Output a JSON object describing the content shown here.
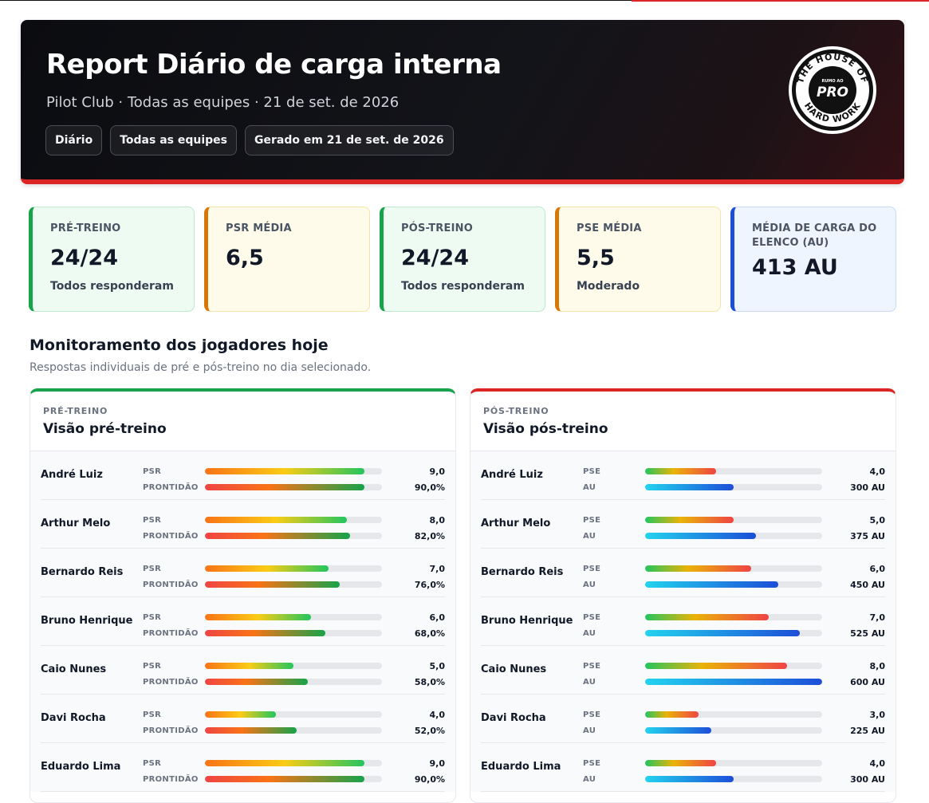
{
  "header": {
    "title": "Report Diário de carga interna",
    "subtitle": "Pilot Club · Todas as equipes · 21 de set. de 2026",
    "pills": [
      "Diário",
      "Todas as equipes",
      "Gerado em 21 de set. de 2026"
    ],
    "logo": {
      "top_text": "THE HOUSE OF",
      "small_text": "RUMO AO",
      "main_text": "PRO",
      "bottom_text": "HARD WORK"
    }
  },
  "kpis": [
    {
      "label": "PRÉ-TREINO",
      "value": "24/24",
      "note": "Todos responderam",
      "accent": "#16a34a"
    },
    {
      "label": "PSR MÉDIA",
      "value": "6,5",
      "note": "",
      "accent": "#d97706"
    },
    {
      "label": "PÓS-TREINO",
      "value": "24/24",
      "note": "Todos responderam",
      "accent": "#16a34a"
    },
    {
      "label": "PSE MÉDIA",
      "value": "5,5",
      "note": "Moderado",
      "accent": "#d97706"
    },
    {
      "label": "MÉDIA DE CARGA DO ELENCO (AU)",
      "value": "413 AU",
      "note": "",
      "accent": "#1d4ed8"
    }
  ],
  "section": {
    "title": "Monitoramento dos jogadores hoje",
    "subtitle": "Respostas individuais de pré e pós-treino no dia selecionado."
  },
  "pre_panel": {
    "kicker": "PRÉ-TREINO",
    "title": "Visão pré-treino",
    "label_a": "PSR",
    "label_b": "PRONTIDÃO",
    "rows": [
      {
        "name": "André Luiz",
        "a_text": "9,0",
        "a_frac": 0.9,
        "b_text": "90,0%",
        "b_frac": 0.9
      },
      {
        "name": "Arthur Melo",
        "a_text": "8,0",
        "a_frac": 0.8,
        "b_text": "82,0%",
        "b_frac": 0.82
      },
      {
        "name": "Bernardo Reis",
        "a_text": "7,0",
        "a_frac": 0.7,
        "b_text": "76,0%",
        "b_frac": 0.76
      },
      {
        "name": "Bruno Henrique",
        "a_text": "6,0",
        "a_frac": 0.6,
        "b_text": "68,0%",
        "b_frac": 0.68
      },
      {
        "name": "Caio Nunes",
        "a_text": "5,0",
        "a_frac": 0.5,
        "b_text": "58,0%",
        "b_frac": 0.58
      },
      {
        "name": "Davi Rocha",
        "a_text": "4,0",
        "a_frac": 0.4,
        "b_text": "52,0%",
        "b_frac": 0.52
      },
      {
        "name": "Eduardo Lima",
        "a_text": "9,0",
        "a_frac": 0.9,
        "b_text": "90,0%",
        "b_frac": 0.9
      }
    ]
  },
  "post_panel": {
    "kicker": "PÓS-TREINO",
    "title": "Visão pós-treino",
    "label_a": "PSE",
    "label_b": "AU",
    "rows": [
      {
        "name": "André Luiz",
        "a_text": "4,0",
        "a_frac": 0.4,
        "b_text": "300 AU",
        "b_frac": 0.5
      },
      {
        "name": "Arthur Melo",
        "a_text": "5,0",
        "a_frac": 0.5,
        "b_text": "375 AU",
        "b_frac": 0.625
      },
      {
        "name": "Bernardo Reis",
        "a_text": "6,0",
        "a_frac": 0.6,
        "b_text": "450 AU",
        "b_frac": 0.75
      },
      {
        "name": "Bruno Henrique",
        "a_text": "7,0",
        "a_frac": 0.7,
        "b_text": "525 AU",
        "b_frac": 0.875
      },
      {
        "name": "Caio Nunes",
        "a_text": "8,0",
        "a_frac": 0.8,
        "b_text": "600 AU",
        "b_frac": 1.0
      },
      {
        "name": "Davi Rocha",
        "a_text": "3,0",
        "a_frac": 0.3,
        "b_text": "225 AU",
        "b_frac": 0.375
      },
      {
        "name": "Eduardo Lima",
        "a_text": "4,0",
        "a_frac": 0.4,
        "b_text": "300 AU",
        "b_frac": 0.5
      }
    ]
  },
  "colors": {
    "accent_red": "#dc2626",
    "accent_green": "#16a34a",
    "accent_amber": "#d97706",
    "accent_blue": "#1d4ed8"
  }
}
